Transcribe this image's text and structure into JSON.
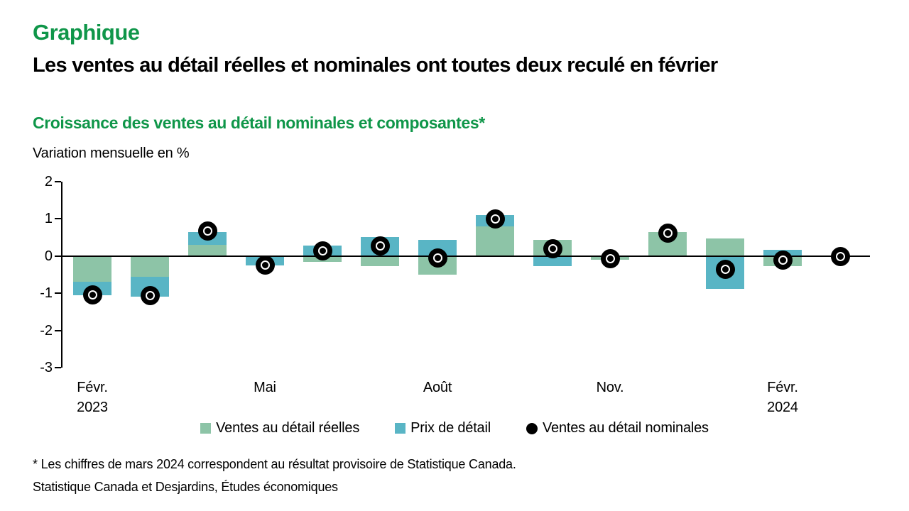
{
  "header": {
    "kicker": "Graphique",
    "title": "Les ventes au détail réelles et nominales ont toutes deux reculé en février"
  },
  "colors": {
    "heading_green": "#0F9649",
    "real_bar_green": "#8DC4A7",
    "price_bar_blue": "#59B5C5",
    "nominal_dot_black": "#000000"
  },
  "chart_data": {
    "type": "bar",
    "stacked": true,
    "title": "Croissance des ventes au détail nominales et composantes*",
    "ylabel": "Variation mensuelle en %",
    "ylim": [
      -3,
      2
    ],
    "yticks": [
      2,
      1,
      0,
      -1,
      -2,
      -3
    ],
    "grid": false,
    "legend_position": "bottom",
    "categories": [
      "Févr. 2023",
      "Mars 2023",
      "Avr. 2023",
      "Mai 2023",
      "Juin 2023",
      "Juil. 2023",
      "Août 2023",
      "Sept. 2023",
      "Oct. 2023",
      "Nov. 2023",
      "Déc. 2023",
      "Janv. 2024",
      "Févr. 2024",
      "Mars 2024"
    ],
    "x_tick_labels": [
      {
        "index": 0,
        "lines": [
          "Févr.",
          "2023"
        ]
      },
      {
        "index": 3,
        "lines": [
          "Mai"
        ]
      },
      {
        "index": 6,
        "lines": [
          "Août"
        ]
      },
      {
        "index": 9,
        "lines": [
          "Nov."
        ]
      },
      {
        "index": 12,
        "lines": [
          "Févr.",
          "2024"
        ]
      }
    ],
    "series": [
      {
        "name": "Ventes au détail réelles",
        "color": "#8DC4A7",
        "values": [
          -0.7,
          -0.55,
          0.3,
          0.0,
          -0.15,
          -0.27,
          -0.5,
          0.8,
          0.43,
          -0.1,
          0.64,
          0.47,
          -0.27,
          null
        ]
      },
      {
        "name": "Prix de détail",
        "color": "#59B5C5",
        "values": [
          -0.35,
          -0.55,
          0.35,
          -0.25,
          0.28,
          0.52,
          0.43,
          0.3,
          -0.27,
          0.0,
          0.0,
          -0.88,
          0.17,
          null
        ]
      }
    ],
    "dot_series": {
      "name": "Ventes au détail nominales",
      "color": "#000000",
      "values": [
        -1.05,
        -1.07,
        0.67,
        -0.25,
        0.13,
        0.27,
        -0.05,
        1.0,
        0.2,
        -0.08,
        0.61,
        -0.35,
        -0.11,
        -0.02
      ]
    }
  },
  "footnotes": {
    "note": "* Les chiffres de mars 2024 correspondent au résultat provisoire de Statistique Canada.",
    "source": "Statistique Canada et Desjardins, Études économiques"
  }
}
